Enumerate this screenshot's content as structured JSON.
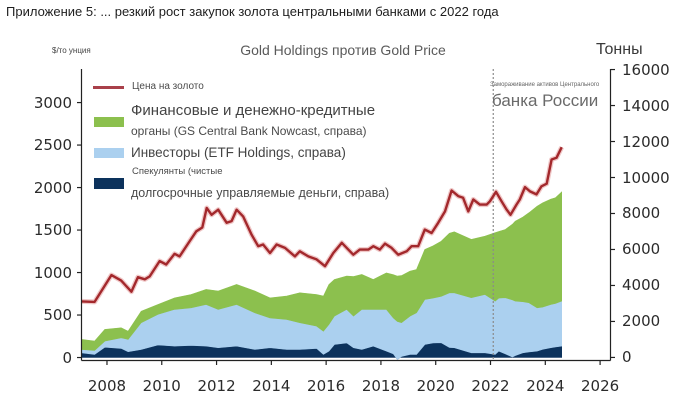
{
  "caption": "Приложение 5: ... резкий рост закупок золота центральными банками с 2022 года",
  "chart": {
    "title": "Gold Holdings против Gold Price",
    "left_axis_label": "$/то унция",
    "right_axis_label": "Тонны",
    "annotation": {
      "line1": "Замораживание активов Центрального",
      "line2": "банка России"
    },
    "legend": [
      {
        "label": "Цена на золото",
        "kind": "line",
        "color": "#a9404a"
      },
      {
        "label_line1": "Финансовые и денежно-кредитные",
        "label_line2": "органы (GS Central Bank Nowcast, справа)",
        "kind": "area",
        "color": "#8cc04e"
      },
      {
        "label": "Инвесторы (ETF Holdings, справа)",
        "kind": "area",
        "color": "#abd0ef"
      },
      {
        "label_line1": "Спекулянты (чистые",
        "label_line2": "долгосрочные управляемые деньги, справа)",
        "kind": "area",
        "color": "#0c325c"
      }
    ]
  },
  "colors": {
    "price_line": "#a3282c",
    "price_halo": "#eab1b1",
    "central_banks": "#8cc04e",
    "etf": "#abd0ef",
    "speculators": "#0c325c",
    "axis": "#222222",
    "event_line": "#8a8a8a"
  },
  "chart_data": {
    "type": "area",
    "title": "Gold Holdings против Gold Price",
    "xlabel": "",
    "ylabel": "$/то унция",
    "ylabel_right": "Тонны",
    "xlim": [
      2007.07,
      2026.38
    ],
    "ylim": [
      -35,
      3395
    ],
    "ylim_right": [
      -170,
      16030
    ],
    "x_ticks": [
      2008,
      2010,
      2012,
      2014,
      2016,
      2018,
      2020,
      2022,
      2024,
      2026
    ],
    "y_ticks_left": [
      0,
      500,
      1000,
      1500,
      2000,
      2500,
      3000
    ],
    "y_ticks_right": [
      0,
      2000,
      4000,
      6000,
      8000,
      10000,
      12000,
      14000,
      16000
    ],
    "grid": false,
    "legend_position": "upper left",
    "stacked": true,
    "annotations": [
      {
        "type": "vline",
        "x": 2022.1,
        "style": "dotted",
        "text": "Замораживание активов Центрального банка России"
      }
    ],
    "series": [
      {
        "name": "Цена на золото",
        "type": "line",
        "axis": "left",
        "color": "#a3282c",
        "x": [
          2007.07,
          2007.55,
          2008.16,
          2008.52,
          2008.89,
          2009.13,
          2009.38,
          2009.56,
          2009.92,
          2010.16,
          2010.47,
          2010.65,
          2011.02,
          2011.26,
          2011.48,
          2011.64,
          2011.82,
          2012.06,
          2012.37,
          2012.55,
          2012.73,
          2012.97,
          2013.28,
          2013.52,
          2013.7,
          2013.95,
          2014.19,
          2014.5,
          2014.86,
          2015.04,
          2015.35,
          2015.65,
          2015.96,
          2016.26,
          2016.57,
          2016.81,
          2016.99,
          2017.23,
          2017.54,
          2017.72,
          2017.96,
          2018.15,
          2018.39,
          2018.63,
          2018.94,
          2019.12,
          2019.36,
          2019.6,
          2019.85,
          2020.09,
          2020.34,
          2020.58,
          2020.82,
          2021.0,
          2021.19,
          2021.37,
          2021.61,
          2021.86,
          2021.98,
          2022.2,
          2022.4,
          2022.59,
          2022.73,
          2022.95,
          2023.07,
          2023.26,
          2023.44,
          2023.68,
          2023.86,
          2024.05,
          2024.23,
          2024.41,
          2024.6
        ],
        "values": [
          660,
          655,
          970,
          905,
          775,
          945,
          920,
          955,
          1135,
          1095,
          1220,
          1190,
          1370,
          1485,
          1530,
          1760,
          1680,
          1740,
          1585,
          1605,
          1740,
          1660,
          1445,
          1310,
          1330,
          1230,
          1330,
          1290,
          1190,
          1250,
          1190,
          1155,
          1075,
          1230,
          1350,
          1270,
          1210,
          1270,
          1270,
          1310,
          1270,
          1340,
          1290,
          1210,
          1250,
          1310,
          1310,
          1505,
          1465,
          1585,
          1720,
          1965,
          1900,
          1880,
          1720,
          1860,
          1800,
          1800,
          1840,
          1950,
          1840,
          1740,
          1680,
          1800,
          1860,
          2005,
          1955,
          1920,
          2015,
          2045,
          2330,
          2350,
          2475
        ]
      },
      {
        "name": "Спекулянты (чистые долгосрочные управляемые деньги, справа)",
        "type": "area",
        "axis": "right",
        "stack_order": 1,
        "color": "#0c325c",
        "x": [
          2007.07,
          2007.55,
          2007.92,
          2008.52,
          2008.77,
          2009.25,
          2009.86,
          2010.47,
          2011.07,
          2011.62,
          2012.06,
          2012.73,
          2013.4,
          2013.95,
          2014.56,
          2015.04,
          2015.65,
          2015.9,
          2016.1,
          2016.3,
          2016.75,
          2017.0,
          2017.3,
          2017.72,
          2018.2,
          2018.45,
          2018.6,
          2018.75,
          2019.06,
          2019.3,
          2019.6,
          2019.9,
          2020.2,
          2020.5,
          2020.68,
          2021.3,
          2021.8,
          2022.17,
          2022.3,
          2022.54,
          2022.8,
          2022.9,
          2023.18,
          2023.4,
          2023.7,
          2023.9,
          2024.2,
          2024.37,
          2024.6
        ],
        "values": [
          260,
          170,
          570,
          500,
          320,
          440,
          690,
          630,
          670,
          630,
          540,
          630,
          440,
          540,
          440,
          440,
          500,
          170,
          350,
          720,
          810,
          540,
          440,
          630,
          350,
          200,
          -110,
          50,
          170,
          170,
          720,
          810,
          820,
          550,
          540,
          260,
          260,
          170,
          350,
          200,
          20,
          100,
          260,
          300,
          350,
          450,
          540,
          580,
          630
        ]
      },
      {
        "name": "Инвесторы (ETF Holdings, справа)",
        "type": "area",
        "axis": "right",
        "stack_order": 2,
        "color": "#abd0ef",
        "x": [
          2007.07,
          2007.55,
          2007.92,
          2008.52,
          2008.77,
          2009.25,
          2009.86,
          2010.47,
          2011.07,
          2011.62,
          2012.06,
          2012.73,
          2013.4,
          2013.95,
          2014.56,
          2015.04,
          2015.65,
          2015.9,
          2016.1,
          2016.3,
          2016.75,
          2017.0,
          2017.3,
          2017.72,
          2018.2,
          2018.45,
          2018.6,
          2018.75,
          2019.06,
          2019.3,
          2019.6,
          2019.9,
          2020.2,
          2020.5,
          2020.68,
          2021.3,
          2021.8,
          2022.17,
          2022.3,
          2022.54,
          2022.8,
          2022.9,
          2023.18,
          2023.4,
          2023.7,
          2023.9,
          2024.2,
          2024.37,
          2024.6
        ],
        "values": [
          180,
          220,
          340,
          590,
          680,
          1490,
          1700,
          2040,
          2090,
          2310,
          2130,
          2310,
          2040,
          1660,
          1670,
          1490,
          1240,
          1290,
          1480,
          1580,
          1860,
          1760,
          2230,
          2040,
          2320,
          2000,
          2110,
          1880,
          2130,
          2310,
          2500,
          2490,
          2580,
          3040,
          3050,
          3060,
          3240,
          2960,
          2950,
          3120,
          3180,
          3030,
          2840,
          2740,
          2410,
          2350,
          2400,
          2420,
          2500
        ]
      },
      {
        "name": "Финансовые и денежно-кредитные органы (GS Central Bank Nowcast, справа)",
        "type": "area",
        "axis": "right",
        "stack_order": 3,
        "color": "#8cc04e",
        "x": [
          2007.07,
          2007.55,
          2007.92,
          2008.52,
          2008.77,
          2009.25,
          2009.86,
          2010.47,
          2011.07,
          2011.62,
          2012.06,
          2012.73,
          2013.4,
          2013.95,
          2014.56,
          2015.04,
          2015.65,
          2015.9,
          2016.1,
          2016.3,
          2016.75,
          2017.0,
          2017.3,
          2017.72,
          2018.2,
          2018.45,
          2018.6,
          2018.75,
          2019.06,
          2019.3,
          2019.6,
          2019.9,
          2020.2,
          2020.5,
          2020.68,
          2021.3,
          2021.8,
          2022.17,
          2022.3,
          2022.54,
          2022.8,
          2022.9,
          2023.18,
          2023.4,
          2023.7,
          2023.9,
          2024.2,
          2024.37,
          2024.6
        ],
        "values": [
          560,
          520,
          650,
          560,
          460,
          640,
          550,
          640,
          740,
          840,
          1020,
          1120,
          1210,
          1110,
          1300,
          1660,
          1760,
          1950,
          2220,
          2030,
          1850,
          2200,
          1940,
          1660,
          2030,
          2400,
          2520,
          2620,
          2500,
          2410,
          2780,
          2900,
          3060,
          3310,
          3390,
          3240,
          3240,
          3800,
          3700,
          3790,
          4200,
          4440,
          4700,
          5000,
          5640,
          5790,
          5860,
          5870,
          6070
        ]
      }
    ]
  }
}
